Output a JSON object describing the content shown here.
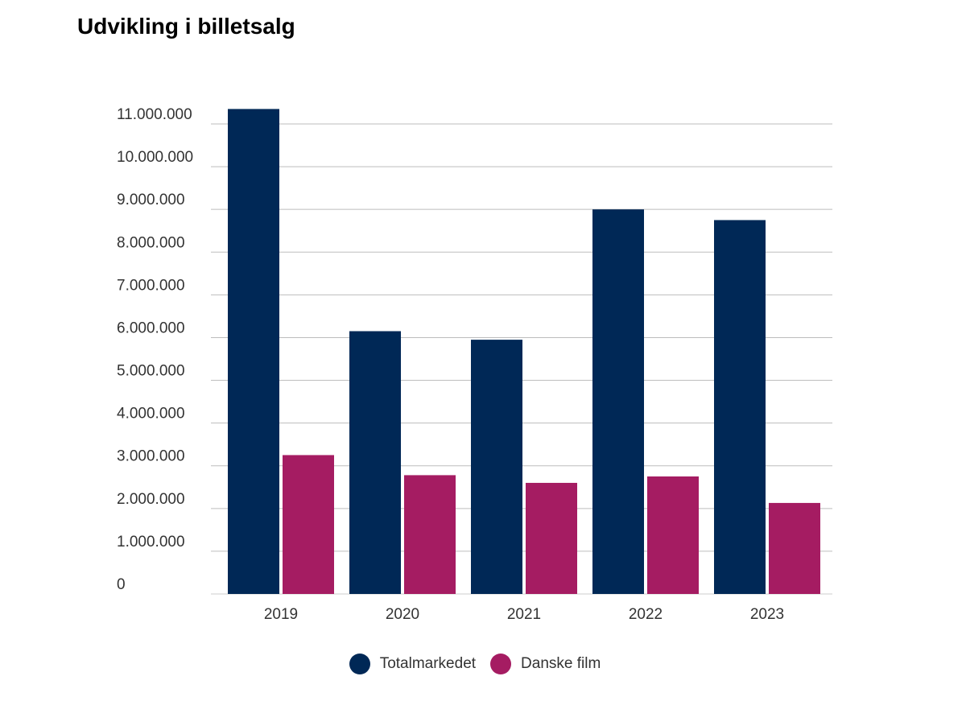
{
  "chart_data": {
    "type": "bar",
    "title": "Udvikling i billetsalg",
    "categories": [
      "2019",
      "2020",
      "2021",
      "2022",
      "2023"
    ],
    "series": [
      {
        "name": "Totalmarkedet",
        "color": "#002856",
        "values": [
          11350000,
          6150000,
          5950000,
          9000000,
          8750000
        ]
      },
      {
        "name": "Danske film",
        "color": "#a51c62",
        "values": [
          3250000,
          2780000,
          2600000,
          2750000,
          2130000
        ]
      }
    ],
    "ylim": [
      0,
      11000000
    ],
    "yticks": [
      0,
      1000000,
      2000000,
      3000000,
      4000000,
      5000000,
      6000000,
      7000000,
      8000000,
      9000000,
      10000000,
      11000000
    ],
    "ytick_labels": [
      "0",
      "1.000.000",
      "2.000.000",
      "3.000.000",
      "4.000.000",
      "5.000.000",
      "6.000.000",
      "7.000.000",
      "8.000.000",
      "9.000.000",
      "10.000.000",
      "11.000.000"
    ],
    "xlabel": "",
    "ylabel": "",
    "grid": true,
    "legend_position": "bottom-center"
  }
}
